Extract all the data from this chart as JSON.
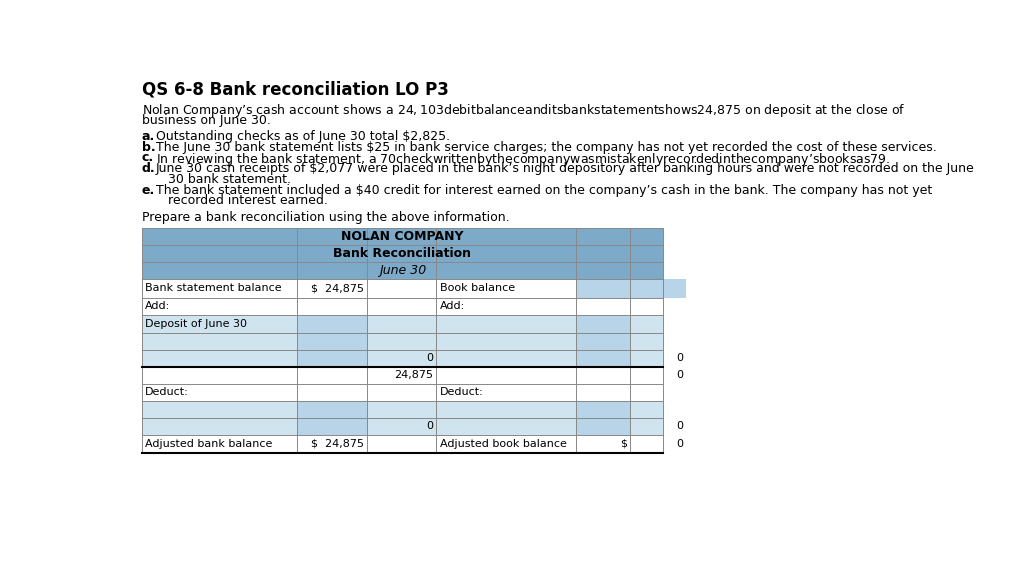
{
  "title": "QS 6-8 Bank reconciliation LO P3",
  "intro_line1": "Nolan Company’s cash account shows a $24,103 debit balance and its bank statement shows $24,875 on deposit at the close of",
  "intro_line2": "business on June 30.",
  "bullet_a_label": "a.",
  "bullet_a_text": "Outstanding checks as of June 30 total $2,825.",
  "bullet_b_label": "b.",
  "bullet_b_text": "The June 30 bank statement lists $25 in bank service charges; the company has not yet recorded the cost of these services.",
  "bullet_c_label": "c.",
  "bullet_c_text": "In reviewing the bank statement, a $70 check written by the company was mistakenly recorded in the company’s books as $79.",
  "bullet_d_label": "d.",
  "bullet_d_text1": "June 30 cash receipts of $2,077 were placed in the bank’s night depository after banking hours and were not recorded on the June",
  "bullet_d_text2": "   30 bank statement.",
  "bullet_e_label": "e.",
  "bullet_e_text1": "The bank statement included a $40 credit for interest earned on the company’s cash in the bank. The company has not yet",
  "bullet_e_text2": "   recorded interest earned.",
  "prepare_text": "Prepare a bank reconciliation using the above information.",
  "table_header1": "NOLAN COMPANY",
  "table_header2": "Bank Reconciliation",
  "table_header3": "June 30",
  "header_bg": "#7daac9",
  "row_highlight_bg": "#d0e4f0",
  "cell_highlight": "#b8d4e8",
  "table_border_color": "#888888",
  "background_color": "#ffffff",
  "text_color": "#000000",
  "font_size_title": 12,
  "font_size_body": 9,
  "font_size_table": 8
}
